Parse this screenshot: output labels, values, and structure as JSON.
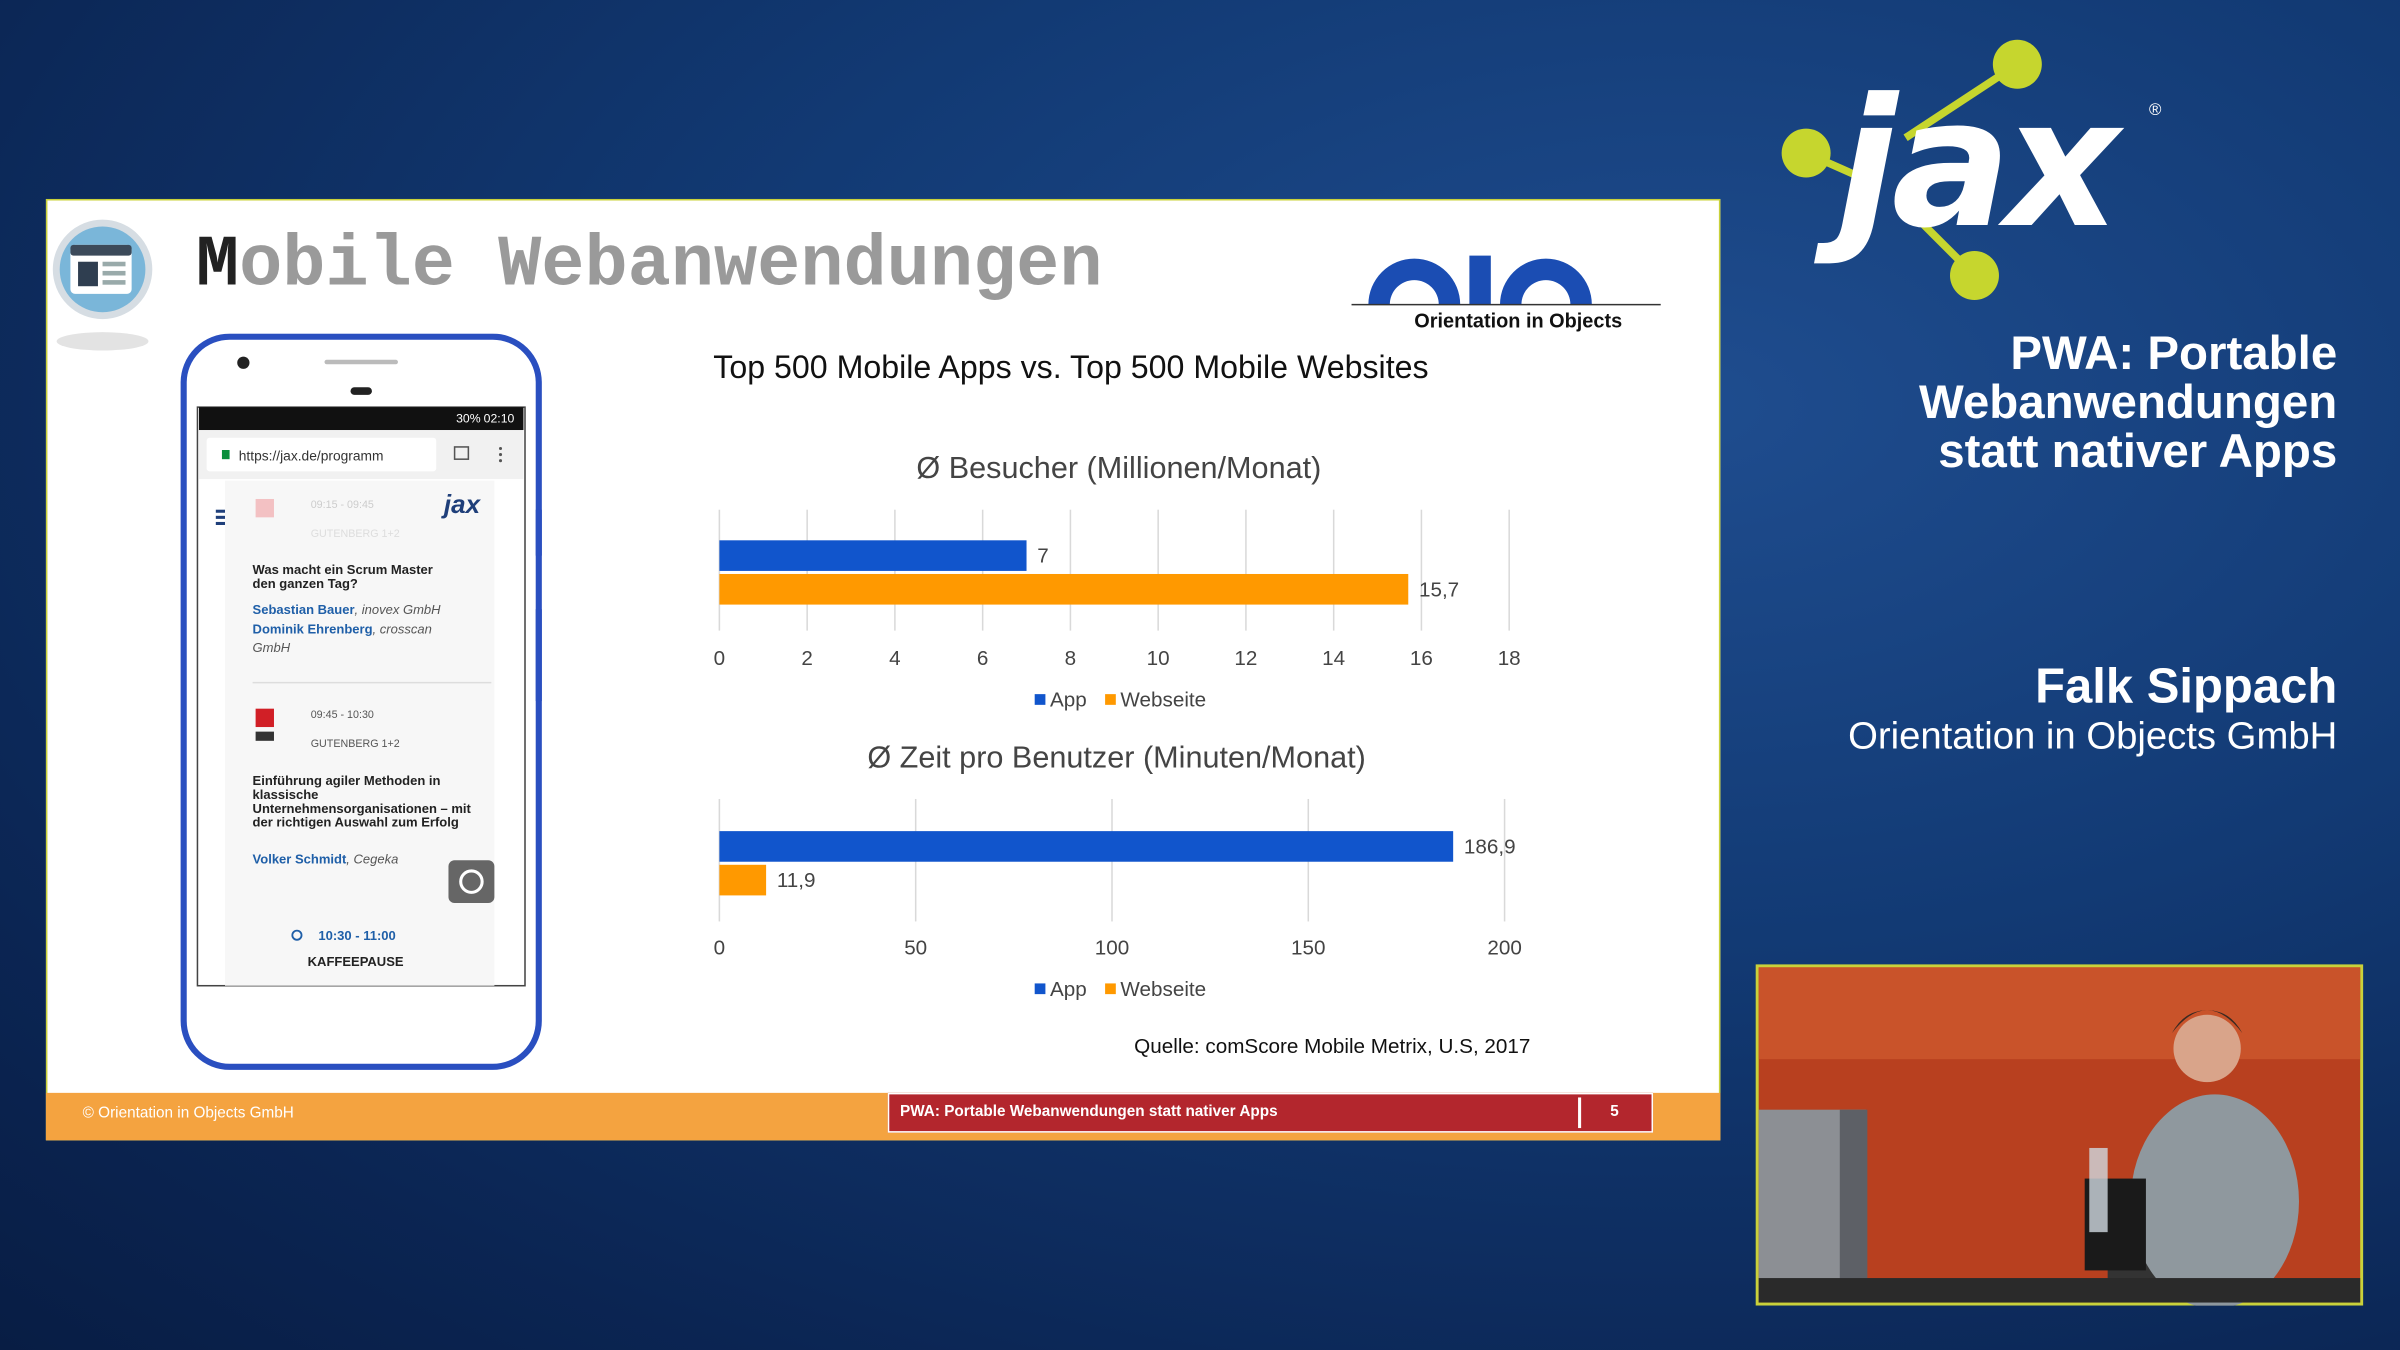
{
  "slide": {
    "title": "Mobile Webanwendungen",
    "heading": "Top 500 Mobile Apps vs. Top 500 Mobile Websites",
    "source": "Quelle: comScore Mobile Metrix, U.S, 2017",
    "logo_caption": "Orientation in Objects",
    "footer": {
      "copyright": "© Orientation in Objects GmbH",
      "talk": "PWA: Portable Webanwendungen statt nativer Apps",
      "page": 5
    }
  },
  "phone": {
    "battery": "30%",
    "clock": "02:10",
    "url": "https://jax.de/programm",
    "logo": "jax",
    "faded_time": "09:15 - 09:45",
    "faded_room": "GUTENBERG 1+2",
    "talk1": {
      "title": "Was macht ein Scrum Master den ganzen Tag?",
      "speakers": [
        {
          "name": "Sebastian Bauer",
          "affiliation": ", inovex GmbH"
        },
        {
          "name": "Dominik Ehrenberg",
          "affiliation": ", crosscan GmbH"
        }
      ]
    },
    "talk2": {
      "time": "09:45 - 10:30",
      "room": "GUTENBERG 1+2",
      "title": "Einführung agiler Methoden in klassische Unternehmensorganisationen – mit der richtigen Auswahl zum Erfolg",
      "speakers": [
        {
          "name": "Volker Schmidt",
          "affiliation": ", Cegeka"
        }
      ]
    },
    "break": {
      "time": "10:30 - 11:00",
      "title": "KAFFEEPAUSE"
    }
  },
  "chart_data": [
    {
      "type": "bar",
      "orientation": "horizontal",
      "title": "Ø Besucher (Millionen/Monat)",
      "categories": [
        null
      ],
      "series": [
        {
          "name": "App",
          "color": "#1155cc",
          "values": [
            7
          ]
        },
        {
          "name": "Webseite",
          "color": "#ff9900",
          "values": [
            15.7
          ],
          "value_labels": [
            "15,7"
          ]
        }
      ],
      "xlim": [
        0,
        18
      ],
      "xticks": [
        0,
        2,
        4,
        6,
        8,
        10,
        12,
        14,
        16,
        18
      ],
      "grid": true,
      "legend": "bottom"
    },
    {
      "type": "bar",
      "orientation": "horizontal",
      "title": "Ø Zeit pro Benutzer (Minuten/Monat)",
      "categories": [
        null
      ],
      "series": [
        {
          "name": "App",
          "color": "#1155cc",
          "values": [
            186.9
          ],
          "value_labels": [
            "186,9"
          ]
        },
        {
          "name": "Webseite",
          "color": "#ff9900",
          "values": [
            11.9
          ],
          "value_labels": [
            "11,9"
          ]
        }
      ],
      "xlim": [
        0,
        200
      ],
      "xticks": [
        0,
        50,
        100,
        150,
        200
      ],
      "grid": true,
      "legend": "bottom"
    }
  ],
  "sidebar": {
    "logo": "jax",
    "registered": "®",
    "talk_title": [
      "PWA: Portable",
      "Webanwendungen",
      "statt nativer Apps"
    ],
    "speaker": "Falk Sippach",
    "company": "Orientation in Objects GmbH"
  }
}
